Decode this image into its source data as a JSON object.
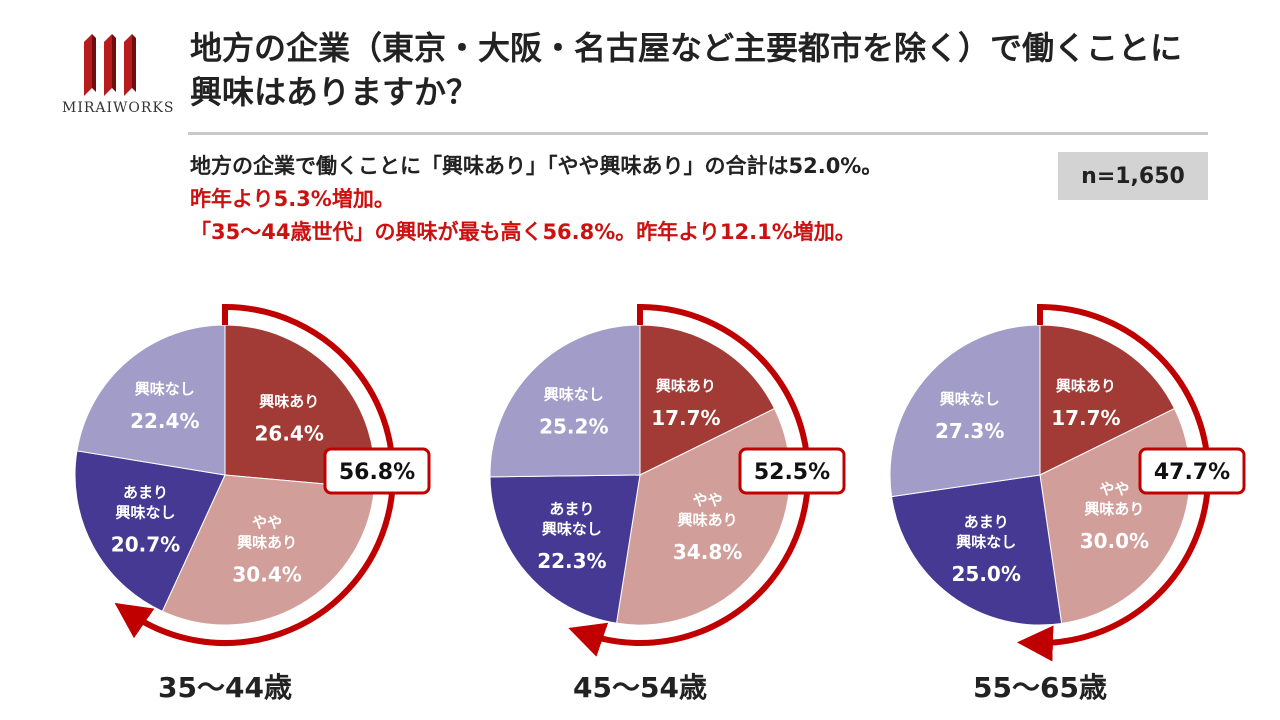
{
  "brand": {
    "logo_text": "MIRAIWORKS"
  },
  "title": {
    "line1": "地方の企業（東京・大阪・名古屋など主要都市を除く）で働くことに",
    "line2": "興味はありますか？"
  },
  "summary": {
    "line1": "地方の企業で働くことに「興味あり」「やや興味あり」の合計は52.0%。",
    "line2": "昨年より5.3%増加。",
    "line3": "「35～44歳世代」の興味が最も高く56.8%。昨年より12.1%増加。"
  },
  "sample_size": "n=1,650",
  "colors": {
    "interested": "#a23b36",
    "somewhat_interested": "#d19e9a",
    "not_very_interested": "#463993",
    "not_interested": "#a29cc8",
    "accent_red": "#c00000"
  },
  "chart_data": [
    {
      "type": "pie",
      "group": "35～44歳",
      "total_label": "56.8%",
      "slices": [
        {
          "name": "興味あり",
          "value": 26.4,
          "label": "26.4%",
          "color": "#a23b36"
        },
        {
          "name": "やや\n興味あり",
          "value": 30.4,
          "label": "30.4%",
          "color": "#d19e9a"
        },
        {
          "name": "あまり\n興味なし",
          "value": 20.7,
          "label": "20.7%",
          "color": "#463993"
        },
        {
          "name": "興味なし",
          "value": 22.4,
          "label": "22.4%",
          "color": "#a29cc8"
        }
      ]
    },
    {
      "type": "pie",
      "group": "45～54歳",
      "total_label": "52.5%",
      "slices": [
        {
          "name": "興味あり",
          "value": 17.7,
          "label": "17.7%",
          "color": "#a23b36"
        },
        {
          "name": "やや\n興味あり",
          "value": 34.8,
          "label": "34.8%",
          "color": "#d19e9a"
        },
        {
          "name": "あまり\n興味なし",
          "value": 22.3,
          "label": "22.3%",
          "color": "#463993"
        },
        {
          "name": "興味なし",
          "value": 25.2,
          "label": "25.2%",
          "color": "#a29cc8"
        }
      ]
    },
    {
      "type": "pie",
      "group": "55～65歳",
      "total_label": "47.7%",
      "slices": [
        {
          "name": "興味あり",
          "value": 17.7,
          "label": "17.7%",
          "color": "#a23b36"
        },
        {
          "name": "やや\n興味あり",
          "value": 30.0,
          "label": "30.0%",
          "color": "#d19e9a"
        },
        {
          "name": "あまり\n興味なし",
          "value": 25.0,
          "label": "25.0%",
          "color": "#463993"
        },
        {
          "name": "興味なし",
          "value": 27.3,
          "label": "27.3%",
          "color": "#a29cc8"
        }
      ]
    }
  ]
}
